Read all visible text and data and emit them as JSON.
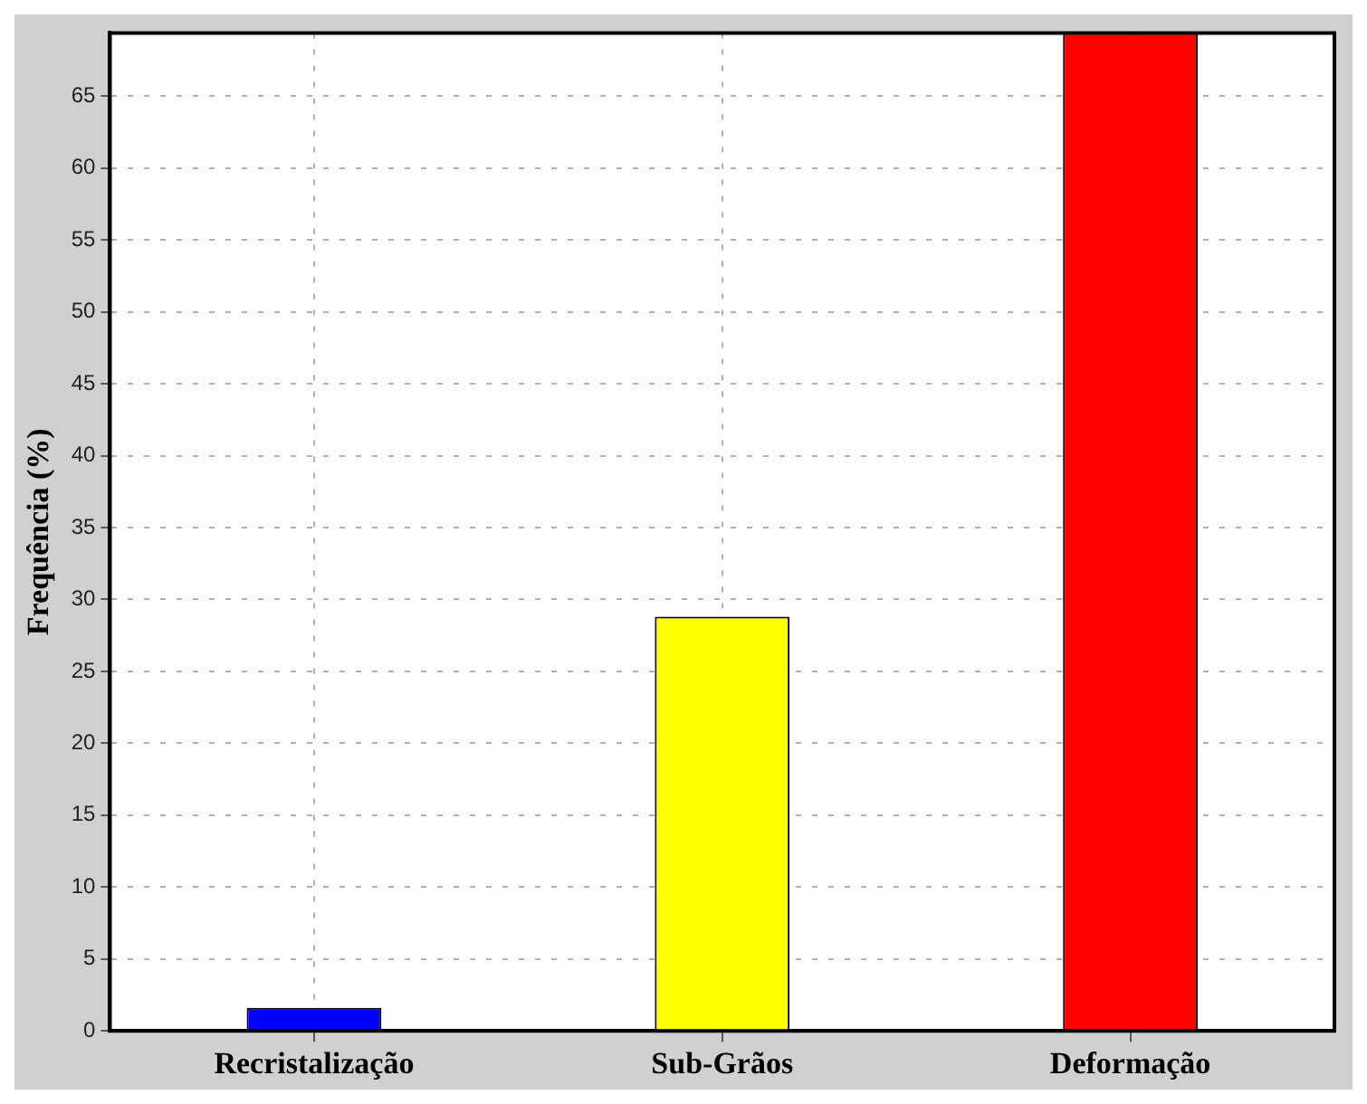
{
  "chart_data": {
    "type": "bar",
    "ylabel": "Frequência (%)",
    "categories": [
      "Recristalização",
      "Sub-Grãos",
      "Deformação"
    ],
    "values": [
      1.6,
      28.8,
      69.4
    ],
    "colors": [
      "#0000ff",
      "#ffff00",
      "#ff0000"
    ],
    "ylim": [
      0,
      69.4
    ],
    "yticks": [
      0,
      5,
      10,
      15,
      20,
      25,
      30,
      35,
      40,
      45,
      50,
      55,
      60,
      65
    ],
    "grid": true
  }
}
